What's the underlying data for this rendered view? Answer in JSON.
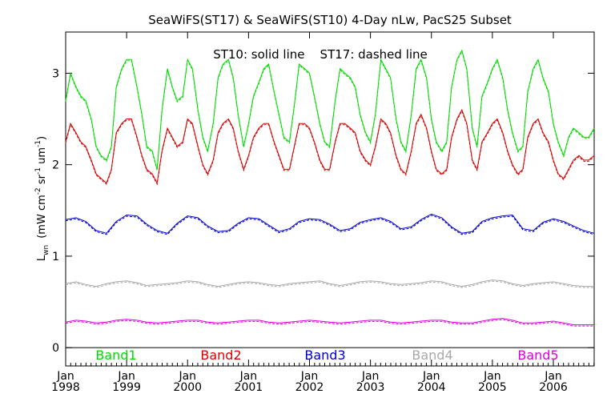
{
  "chart_data": {
    "type": "line",
    "title": "SeaWiFS(ST17) & SeaWiFS(ST10) 4-Day nLw, PacS25 Subset",
    "note": "ST10: solid line    ST17: dashed line",
    "ylabel": {
      "base": "L",
      "sub": "wn",
      "units_open": "(mW cm",
      "sup1": "-2",
      "sr": " sr",
      "sup2": "-1",
      "um": " um",
      "sup3": "-1",
      "close": ")"
    },
    "ylim": [
      -0.2,
      3.45
    ],
    "yticks": [
      "0",
      "1",
      "2",
      "3"
    ],
    "xlim": [
      1998.0,
      2006.67
    ],
    "xticks": [
      {
        "month": "Jan",
        "year": "1998"
      },
      {
        "month": "Jan",
        "year": "1999"
      },
      {
        "month": "Jan",
        "year": "2000"
      },
      {
        "month": "Jan",
        "year": "2001"
      },
      {
        "month": "Jan",
        "year": "2002"
      },
      {
        "month": "Jan",
        "year": "2003"
      },
      {
        "month": "Jan",
        "year": "2004"
      },
      {
        "month": "Jan",
        "year": "2005"
      },
      {
        "month": "Jan",
        "year": "2006"
      }
    ],
    "series": [
      {
        "name": "Band1",
        "color": "#00dd00",
        "x": [
          1998.0,
          1998.08,
          1998.17,
          1998.25,
          1998.33,
          1998.42,
          1998.5,
          1998.58,
          1998.67,
          1998.75,
          1998.83,
          1998.92,
          1999.0,
          1999.08,
          1999.17,
          1999.25,
          1999.33,
          1999.42,
          1999.5,
          1999.58,
          1999.67,
          1999.75,
          1999.83,
          1999.92,
          2000.0,
          2000.08,
          2000.17,
          2000.25,
          2000.33,
          2000.42,
          2000.5,
          2000.58,
          2000.67,
          2000.75,
          2000.83,
          2000.92,
          2001.0,
          2001.08,
          2001.17,
          2001.25,
          2001.33,
          2001.42,
          2001.5,
          2001.58,
          2001.67,
          2001.75,
          2001.83,
          2001.92,
          2002.0,
          2002.08,
          2002.17,
          2002.25,
          2002.33,
          2002.42,
          2002.5,
          2002.58,
          2002.67,
          2002.75,
          2002.83,
          2002.92,
          2003.0,
          2003.08,
          2003.17,
          2003.25,
          2003.33,
          2003.42,
          2003.5,
          2003.58,
          2003.67,
          2003.75,
          2003.83,
          2003.92,
          2004.0,
          2004.08,
          2004.17,
          2004.25,
          2004.33,
          2004.42,
          2004.5,
          2004.58,
          2004.67,
          2004.75,
          2004.83,
          2004.92,
          2005.0,
          2005.08,
          2005.17,
          2005.25,
          2005.33,
          2005.42,
          2005.5,
          2005.58,
          2005.67,
          2005.75,
          2005.83,
          2005.92,
          2006.0,
          2006.08,
          2006.17,
          2006.25,
          2006.33,
          2006.42,
          2006.5,
          2006.58,
          2006.67
        ],
        "y": [
          2.7,
          3.0,
          2.85,
          2.75,
          2.7,
          2.5,
          2.2,
          2.1,
          2.05,
          2.2,
          2.85,
          3.05,
          3.15,
          3.15,
          2.85,
          2.55,
          2.2,
          2.15,
          1.95,
          2.6,
          3.05,
          2.85,
          2.7,
          2.75,
          3.15,
          3.05,
          2.6,
          2.3,
          2.15,
          2.45,
          2.95,
          3.1,
          3.15,
          2.95,
          2.55,
          2.2,
          2.45,
          2.75,
          2.9,
          3.05,
          3.1,
          2.8,
          2.55,
          2.3,
          2.25,
          2.65,
          3.1,
          3.05,
          3.0,
          2.75,
          2.45,
          2.25,
          2.2,
          2.7,
          3.05,
          3.0,
          2.95,
          2.85,
          2.55,
          2.35,
          2.25,
          2.55,
          3.15,
          3.05,
          2.95,
          2.5,
          2.25,
          2.15,
          2.55,
          3.05,
          3.15,
          2.95,
          2.5,
          2.25,
          2.15,
          2.25,
          2.85,
          3.15,
          3.25,
          3.05,
          2.4,
          2.2,
          2.75,
          2.9,
          3.05,
          3.15,
          2.95,
          2.6,
          2.35,
          2.15,
          2.2,
          2.8,
          3.05,
          3.15,
          2.95,
          2.8,
          2.45,
          2.25,
          2.1,
          2.3,
          2.4,
          2.35,
          2.3,
          2.3,
          2.4
        ]
      },
      {
        "name": "Band2",
        "color": "#dd0000",
        "x": [
          1998.0,
          1998.08,
          1998.17,
          1998.25,
          1998.33,
          1998.42,
          1998.5,
          1998.58,
          1998.67,
          1998.75,
          1998.83,
          1998.92,
          1999.0,
          1999.08,
          1999.17,
          1999.25,
          1999.33,
          1999.42,
          1999.5,
          1999.58,
          1999.67,
          1999.75,
          1999.83,
          1999.92,
          2000.0,
          2000.08,
          2000.17,
          2000.25,
          2000.33,
          2000.42,
          2000.5,
          2000.58,
          2000.67,
          2000.75,
          2000.83,
          2000.92,
          2001.0,
          2001.08,
          2001.17,
          2001.25,
          2001.33,
          2001.42,
          2001.5,
          2001.58,
          2001.67,
          2001.75,
          2001.83,
          2001.92,
          2002.0,
          2002.08,
          2002.17,
          2002.25,
          2002.33,
          2002.42,
          2002.5,
          2002.58,
          2002.67,
          2002.75,
          2002.83,
          2002.92,
          2003.0,
          2003.08,
          2003.17,
          2003.25,
          2003.33,
          2003.42,
          2003.5,
          2003.58,
          2003.67,
          2003.75,
          2003.83,
          2003.92,
          2004.0,
          2004.08,
          2004.17,
          2004.25,
          2004.33,
          2004.42,
          2004.5,
          2004.58,
          2004.67,
          2004.75,
          2004.83,
          2004.92,
          2005.0,
          2005.08,
          2005.17,
          2005.25,
          2005.33,
          2005.42,
          2005.5,
          2005.58,
          2005.67,
          2005.75,
          2005.83,
          2005.92,
          2006.0,
          2006.08,
          2006.17,
          2006.25,
          2006.33,
          2006.42,
          2006.5,
          2006.58,
          2006.67
        ],
        "y": [
          2.25,
          2.45,
          2.35,
          2.25,
          2.2,
          2.05,
          1.9,
          1.85,
          1.8,
          1.95,
          2.35,
          2.45,
          2.5,
          2.5,
          2.3,
          2.1,
          1.95,
          1.9,
          1.8,
          2.15,
          2.4,
          2.3,
          2.2,
          2.25,
          2.5,
          2.45,
          2.2,
          2.0,
          1.9,
          2.05,
          2.35,
          2.45,
          2.5,
          2.4,
          2.15,
          1.95,
          2.1,
          2.3,
          2.4,
          2.45,
          2.45,
          2.25,
          2.1,
          1.95,
          1.95,
          2.2,
          2.45,
          2.45,
          2.4,
          2.25,
          2.05,
          1.95,
          1.95,
          2.25,
          2.45,
          2.45,
          2.4,
          2.35,
          2.15,
          2.05,
          2.0,
          2.2,
          2.5,
          2.45,
          2.35,
          2.1,
          1.95,
          1.9,
          2.15,
          2.45,
          2.55,
          2.4,
          2.15,
          1.95,
          1.9,
          1.95,
          2.3,
          2.5,
          2.6,
          2.45,
          2.05,
          1.95,
          2.25,
          2.35,
          2.45,
          2.5,
          2.35,
          2.15,
          2.0,
          1.9,
          1.95,
          2.3,
          2.45,
          2.5,
          2.35,
          2.25,
          2.05,
          1.9,
          1.85,
          1.95,
          2.05,
          2.1,
          2.05,
          2.05,
          2.1
        ]
      },
      {
        "name": "Band3",
        "color": "#0000cc",
        "x": [
          1998.0,
          1998.17,
          1998.33,
          1998.5,
          1998.67,
          1998.83,
          1999.0,
          1999.17,
          1999.33,
          1999.5,
          1999.67,
          1999.83,
          2000.0,
          2000.17,
          2000.33,
          2000.5,
          2000.67,
          2000.83,
          2001.0,
          2001.17,
          2001.33,
          2001.5,
          2001.67,
          2001.83,
          2002.0,
          2002.17,
          2002.33,
          2002.5,
          2002.67,
          2002.83,
          2003.0,
          2003.17,
          2003.33,
          2003.5,
          2003.67,
          2003.83,
          2004.0,
          2004.17,
          2004.33,
          2004.5,
          2004.67,
          2004.83,
          2005.0,
          2005.17,
          2005.33,
          2005.5,
          2005.67,
          2005.83,
          2006.0,
          2006.17,
          2006.33,
          2006.5,
          2006.67
        ],
        "y": [
          1.4,
          1.42,
          1.38,
          1.28,
          1.25,
          1.38,
          1.45,
          1.44,
          1.35,
          1.28,
          1.25,
          1.36,
          1.44,
          1.42,
          1.33,
          1.27,
          1.28,
          1.36,
          1.42,
          1.41,
          1.34,
          1.27,
          1.3,
          1.38,
          1.41,
          1.4,
          1.35,
          1.28,
          1.3,
          1.37,
          1.4,
          1.42,
          1.38,
          1.3,
          1.32,
          1.4,
          1.46,
          1.42,
          1.32,
          1.25,
          1.27,
          1.38,
          1.42,
          1.44,
          1.45,
          1.3,
          1.28,
          1.37,
          1.41,
          1.38,
          1.33,
          1.28,
          1.25
        ]
      },
      {
        "name": "Band4",
        "color": "#a8a8a8",
        "x": [
          1998.0,
          1998.17,
          1998.33,
          1998.5,
          1998.67,
          1998.83,
          1999.0,
          1999.17,
          1999.33,
          1999.5,
          1999.67,
          1999.83,
          2000.0,
          2000.17,
          2000.33,
          2000.5,
          2000.67,
          2000.83,
          2001.0,
          2001.17,
          2001.33,
          2001.5,
          2001.67,
          2001.83,
          2002.0,
          2002.17,
          2002.33,
          2002.5,
          2002.67,
          2002.83,
          2003.0,
          2003.17,
          2003.33,
          2003.5,
          2003.67,
          2003.83,
          2004.0,
          2004.17,
          2004.33,
          2004.5,
          2004.67,
          2004.83,
          2005.0,
          2005.17,
          2005.33,
          2005.5,
          2005.67,
          2005.83,
          2006.0,
          2006.17,
          2006.33,
          2006.5,
          2006.67
        ],
        "y": [
          0.7,
          0.72,
          0.69,
          0.67,
          0.7,
          0.72,
          0.73,
          0.71,
          0.68,
          0.69,
          0.7,
          0.71,
          0.73,
          0.72,
          0.69,
          0.67,
          0.69,
          0.71,
          0.72,
          0.71,
          0.69,
          0.68,
          0.7,
          0.71,
          0.72,
          0.73,
          0.7,
          0.68,
          0.7,
          0.72,
          0.73,
          0.72,
          0.7,
          0.69,
          0.7,
          0.71,
          0.73,
          0.72,
          0.69,
          0.67,
          0.69,
          0.72,
          0.74,
          0.73,
          0.7,
          0.68,
          0.7,
          0.71,
          0.72,
          0.7,
          0.68,
          0.67,
          0.67
        ]
      },
      {
        "name": "Band5",
        "color": "#dd00dd",
        "x": [
          1998.0,
          1998.17,
          1998.33,
          1998.5,
          1998.67,
          1998.83,
          1999.0,
          1999.17,
          1999.33,
          1999.5,
          1999.67,
          1999.83,
          2000.0,
          2000.17,
          2000.33,
          2000.5,
          2000.67,
          2000.83,
          2001.0,
          2001.17,
          2001.33,
          2001.5,
          2001.67,
          2001.83,
          2002.0,
          2002.17,
          2002.33,
          2002.5,
          2002.67,
          2002.83,
          2003.0,
          2003.17,
          2003.33,
          2003.5,
          2003.67,
          2003.83,
          2004.0,
          2004.17,
          2004.33,
          2004.5,
          2004.67,
          2004.83,
          2005.0,
          2005.17,
          2005.33,
          2005.5,
          2005.67,
          2005.83,
          2006.0,
          2006.17,
          2006.33,
          2006.5,
          2006.67
        ],
        "y": [
          0.28,
          0.3,
          0.29,
          0.27,
          0.28,
          0.3,
          0.31,
          0.3,
          0.28,
          0.27,
          0.28,
          0.29,
          0.3,
          0.3,
          0.28,
          0.27,
          0.28,
          0.29,
          0.3,
          0.3,
          0.28,
          0.27,
          0.28,
          0.29,
          0.3,
          0.29,
          0.28,
          0.27,
          0.28,
          0.29,
          0.3,
          0.3,
          0.28,
          0.27,
          0.28,
          0.29,
          0.3,
          0.3,
          0.28,
          0.27,
          0.27,
          0.29,
          0.31,
          0.32,
          0.3,
          0.27,
          0.27,
          0.28,
          0.29,
          0.27,
          0.25,
          0.25,
          0.25
        ]
      }
    ]
  }
}
